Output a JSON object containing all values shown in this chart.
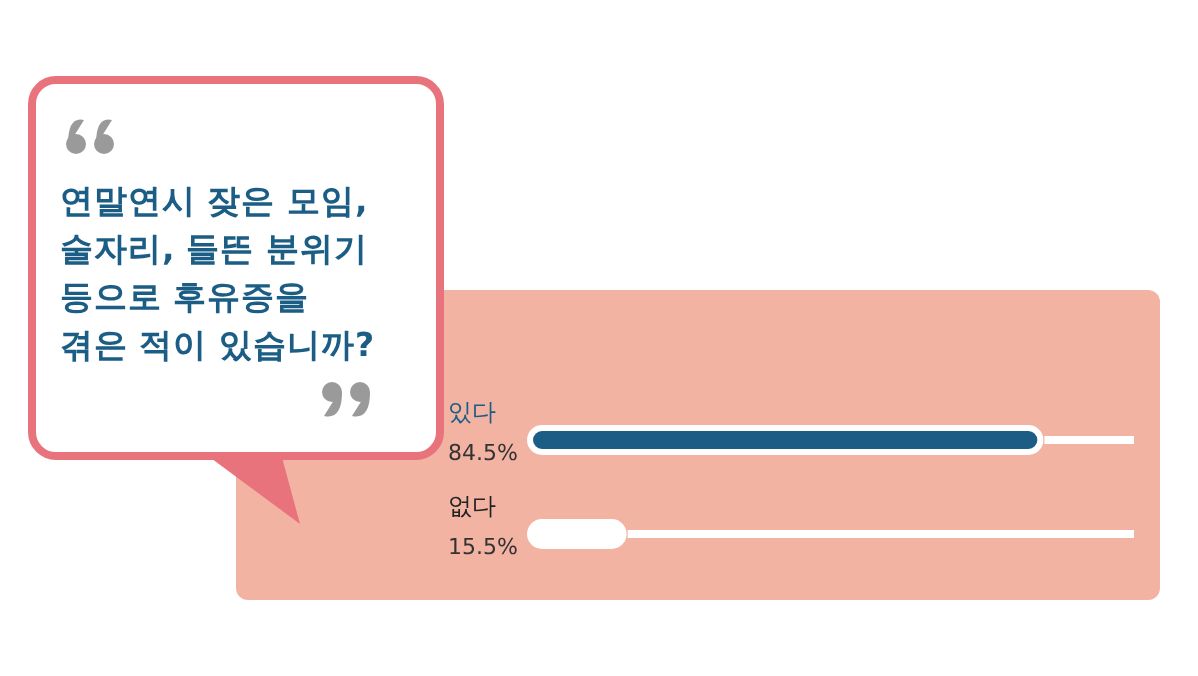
{
  "chart_data": {
    "type": "bar",
    "orientation": "horizontal",
    "title": "연말연시 잦은 모임, 술자리, 들뜬 분위기 등으로 후유증을 겪은 적이 있습니까?",
    "categories": [
      "있다",
      "없다"
    ],
    "values": [
      84.5,
      15.5
    ],
    "value_labels": [
      "84.5%",
      "15.5%"
    ],
    "colors": [
      "#1b5d84",
      "#ffffff"
    ],
    "xlim": [
      0,
      100
    ]
  }
}
